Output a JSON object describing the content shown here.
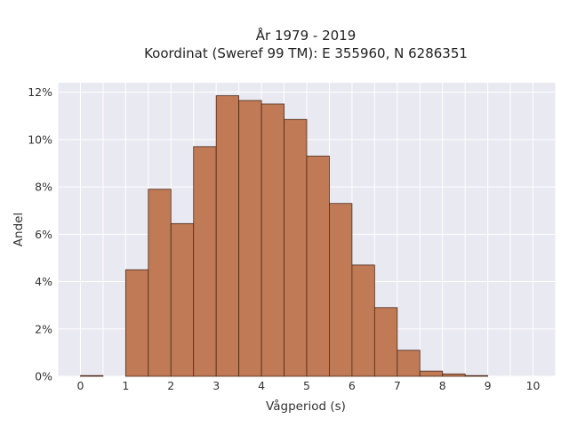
{
  "chart_data": {
    "type": "bar",
    "title_line1": "År 1979 - 2019",
    "title_line2": "Koordinat (Sweref 99 TM): E 355960, N 6286351",
    "xlabel": "Vågperiod (s)",
    "ylabel": "Andel",
    "bin_width": 0.5,
    "bin_starts": [
      0,
      0.5,
      1,
      1.5,
      2,
      2.5,
      3,
      3.5,
      4,
      4.5,
      5,
      5.5,
      6,
      6.5,
      7,
      7.5,
      8,
      8.5,
      9,
      9.5
    ],
    "values": [
      0.03,
      0,
      4.5,
      7.9,
      6.45,
      9.7,
      11.85,
      11.65,
      11.5,
      10.85,
      9.3,
      7.3,
      4.7,
      2.9,
      1.1,
      0.22,
      0.1,
      0.03,
      0,
      0
    ],
    "xlim": [
      -0.5,
      10.5
    ],
    "ylim": [
      0,
      12.4
    ],
    "x_ticks": [
      "0",
      "1",
      "2",
      "3",
      "4",
      "5",
      "6",
      "7",
      "8",
      "9",
      "10"
    ],
    "y_ticks": [
      "0%",
      "2%",
      "4%",
      "6%",
      "8%",
      "10%",
      "12%"
    ],
    "bar_color": "#c07a55",
    "bar_edge_color": "#4a2a1a",
    "plot_background": "#e9e9f1",
    "grid": true
  }
}
